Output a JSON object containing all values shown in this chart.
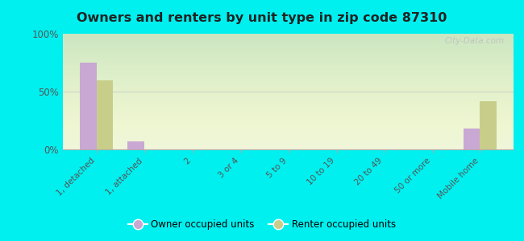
{
  "title": "Owners and renters by unit type in zip code 87310",
  "categories": [
    "1, detached",
    "1, attached",
    "2",
    "3 or 4",
    "5 to 9",
    "10 to 19",
    "20 to 49",
    "50 or more",
    "Mobile home"
  ],
  "owner_values": [
    75,
    7,
    0,
    0,
    0,
    0,
    0,
    0,
    18
  ],
  "renter_values": [
    60,
    0,
    0,
    0,
    0,
    0,
    0,
    0,
    42
  ],
  "owner_color": "#c9a8d4",
  "renter_color": "#c8ce8a",
  "background_color": "#00f0f0",
  "yticks": [
    0,
    50,
    100
  ],
  "ylim": [
    0,
    100
  ],
  "bar_width": 0.35,
  "legend_owner": "Owner occupied units",
  "legend_renter": "Renter occupied units",
  "watermark": "City-Data.com"
}
